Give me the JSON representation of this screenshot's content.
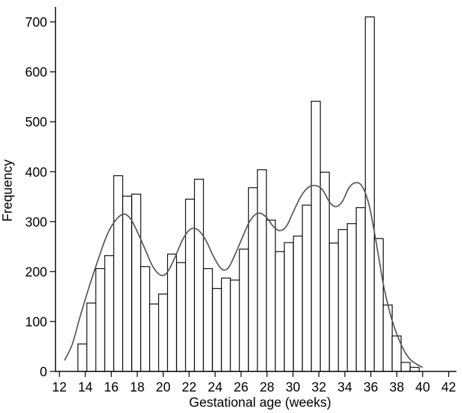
{
  "chart_data": {
    "type": "bar",
    "xlabel": "Gestational age (weeks)",
    "ylabel": "Frequency",
    "xlim": [
      11.7,
      42.6
    ],
    "ylim": [
      0,
      730
    ],
    "x_ticks": [
      12,
      14,
      16,
      18,
      20,
      22,
      24,
      26,
      28,
      30,
      32,
      34,
      36,
      38,
      40,
      42
    ],
    "y_ticks": [
      0,
      100,
      200,
      300,
      400,
      500,
      600,
      700
    ],
    "bin_width": 0.692,
    "bins": [
      {
        "x": 13.77,
        "value": 55
      },
      {
        "x": 14.46,
        "value": 137
      },
      {
        "x": 15.15,
        "value": 206
      },
      {
        "x": 15.84,
        "value": 232
      },
      {
        "x": 16.53,
        "value": 392
      },
      {
        "x": 17.22,
        "value": 351
      },
      {
        "x": 17.92,
        "value": 355
      },
      {
        "x": 18.61,
        "value": 210
      },
      {
        "x": 19.3,
        "value": 135
      },
      {
        "x": 19.99,
        "value": 155
      },
      {
        "x": 20.68,
        "value": 235
      },
      {
        "x": 21.38,
        "value": 218
      },
      {
        "x": 22.07,
        "value": 345
      },
      {
        "x": 22.76,
        "value": 385
      },
      {
        "x": 23.45,
        "value": 206
      },
      {
        "x": 24.15,
        "value": 166
      },
      {
        "x": 24.84,
        "value": 187
      },
      {
        "x": 25.53,
        "value": 183
      },
      {
        "x": 26.22,
        "value": 245
      },
      {
        "x": 26.92,
        "value": 368
      },
      {
        "x": 27.61,
        "value": 404
      },
      {
        "x": 28.3,
        "value": 303
      },
      {
        "x": 28.99,
        "value": 240
      },
      {
        "x": 29.68,
        "value": 258
      },
      {
        "x": 30.38,
        "value": 271
      },
      {
        "x": 31.07,
        "value": 333
      },
      {
        "x": 31.76,
        "value": 541
      },
      {
        "x": 32.45,
        "value": 399
      },
      {
        "x": 33.15,
        "value": 257
      },
      {
        "x": 33.84,
        "value": 284
      },
      {
        "x": 34.53,
        "value": 296
      },
      {
        "x": 35.22,
        "value": 328
      },
      {
        "x": 35.92,
        "value": 710
      },
      {
        "x": 36.61,
        "value": 266
      },
      {
        "x": 37.3,
        "value": 133
      },
      {
        "x": 37.99,
        "value": 71
      },
      {
        "x": 38.68,
        "value": 18
      },
      {
        "x": 39.38,
        "value": 8
      }
    ],
    "density_curve": {
      "x": [
        12.4,
        13.0,
        13.6,
        14.3,
        15.0,
        15.7,
        16.4,
        17.0,
        17.5,
        18.0,
        18.6,
        19.2,
        19.8,
        20.3,
        20.9,
        21.5,
        22.1,
        22.7,
        23.3,
        23.9,
        24.5,
        25.0,
        25.5,
        26.1,
        26.7,
        27.3,
        27.9,
        28.5,
        29.0,
        29.5,
        30.0,
        30.6,
        31.2,
        31.8,
        32.3,
        32.8,
        33.3,
        33.8,
        34.3,
        34.8,
        35.3,
        35.8,
        36.2,
        36.6,
        37.0,
        37.5,
        38.0,
        38.5,
        39.0,
        39.5,
        40.0
      ],
      "y": [
        22,
        55,
        110,
        170,
        225,
        275,
        305,
        315,
        305,
        280,
        245,
        210,
        193,
        198,
        228,
        264,
        285,
        283,
        262,
        229,
        205,
        207,
        232,
        268,
        302,
        317,
        310,
        290,
        282,
        291,
        318,
        350,
        369,
        372,
        363,
        340,
        330,
        340,
        367,
        378,
        372,
        340,
        290,
        230,
        170,
        115,
        75,
        45,
        25,
        15,
        8
      ]
    }
  }
}
